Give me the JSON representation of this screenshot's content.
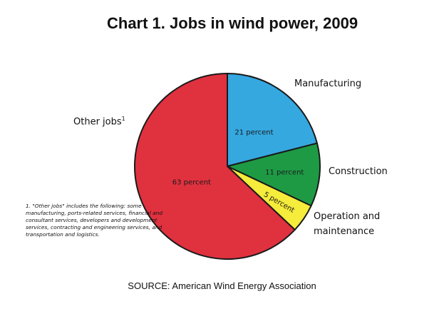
{
  "chart_data": {
    "type": "pie",
    "title": "Chart 1. Jobs in wind power, 2009",
    "slices": [
      {
        "category": "Manufacturing",
        "value": 21,
        "value_label": "21 percent",
        "color": "#35a8e0"
      },
      {
        "category": "Construction",
        "value": 11,
        "value_label": "11 percent",
        "color": "#1e9a45"
      },
      {
        "category": "Operation and maintenance",
        "value": 5,
        "value_label": "5 percent",
        "color": "#f5ec3b"
      },
      {
        "category": "Other jobs",
        "category_superscript": "1",
        "value": 63,
        "value_label": "63 percent",
        "color": "#e0313f"
      }
    ],
    "footnote": "1. \"Other jobs\" includes the following: some manufacturing, ports-related services, financial and consultant services, developers and development services, contracting and engineering services, and transportation and logistics.",
    "source": "SOURCE: American Wind Energy Association"
  }
}
